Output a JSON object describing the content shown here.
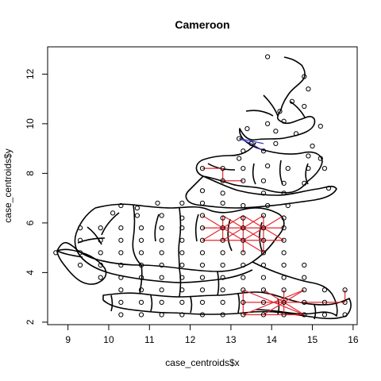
{
  "chart_data": {
    "type": "scatter",
    "title": "Cameroon",
    "xlabel": "case_centroids$x",
    "ylabel": "case_centroids$y",
    "xlim": [
      8.5,
      16.1
    ],
    "ylim": [
      1.9,
      13.1
    ],
    "xticks": [
      9,
      10,
      11,
      12,
      13,
      14,
      15,
      16
    ],
    "yticks": [
      2,
      4,
      6,
      8,
      10,
      12
    ],
    "grid": false,
    "legend": "none",
    "colors": {
      "red_edges": "#e8262e",
      "blue_edges": "#3a3ad0",
      "points": "#000000",
      "boundaries": "#000000"
    },
    "points": [
      [
        13.9,
        12.7
      ],
      [
        14.8,
        11.9
      ],
      [
        14.9,
        11.4
      ],
      [
        14.5,
        10.9
      ],
      [
        14.8,
        10.7
      ],
      [
        14.2,
        10.5
      ],
      [
        14.3,
        10.1
      ],
      [
        13.9,
        10.0
      ],
      [
        15.2,
        9.9
      ],
      [
        13.4,
        9.8
      ],
      [
        14.1,
        9.7
      ],
      [
        14.6,
        9.6
      ],
      [
        13.2,
        9.4
      ],
      [
        13.5,
        9.2
      ],
      [
        14.1,
        9.2
      ],
      [
        15.0,
        9.1
      ],
      [
        13.3,
        8.9
      ],
      [
        13.8,
        8.9
      ],
      [
        14.9,
        8.7
      ],
      [
        15.2,
        8.6
      ],
      [
        13.2,
        8.6
      ],
      [
        12.3,
        8.2
      ],
      [
        12.8,
        8.2
      ],
      [
        13.3,
        8.2
      ],
      [
        13.9,
        8.3
      ],
      [
        14.4,
        8.2
      ],
      [
        14.9,
        8.2
      ],
      [
        15.3,
        8.2
      ],
      [
        12.8,
        7.7
      ],
      [
        13.3,
        7.7
      ],
      [
        13.8,
        7.7
      ],
      [
        14.3,
        7.6
      ],
      [
        14.8,
        7.6
      ],
      [
        15.4,
        7.4
      ],
      [
        12.3,
        7.3
      ],
      [
        12.8,
        7.2
      ],
      [
        13.8,
        7.2
      ],
      [
        14.3,
        7.2
      ],
      [
        11.2,
        6.8
      ],
      [
        11.8,
        6.8
      ],
      [
        12.3,
        6.8
      ],
      [
        12.8,
        6.8
      ],
      [
        13.3,
        6.7
      ],
      [
        13.9,
        6.7
      ],
      [
        14.4,
        6.7
      ],
      [
        10.3,
        6.7
      ],
      [
        10.7,
        6.6
      ],
      [
        10.1,
        6.4
      ],
      [
        10.7,
        6.3
      ],
      [
        11.3,
        6.3
      ],
      [
        11.8,
        6.2
      ],
      [
        12.3,
        6.3
      ],
      [
        12.8,
        6.2
      ],
      [
        13.3,
        6.2
      ],
      [
        13.8,
        6.3
      ],
      [
        14.3,
        6.2
      ],
      [
        9.3,
        5.8
      ],
      [
        9.8,
        5.8
      ],
      [
        10.3,
        5.8
      ],
      [
        10.8,
        5.8
      ],
      [
        11.3,
        5.8
      ],
      [
        11.8,
        5.8
      ],
      [
        12.3,
        5.8
      ],
      [
        12.8,
        5.8
      ],
      [
        13.3,
        5.8
      ],
      [
        13.8,
        5.8
      ],
      [
        14.3,
        5.8
      ],
      [
        9.3,
        5.3
      ],
      [
        9.8,
        5.3
      ],
      [
        10.3,
        5.3
      ],
      [
        10.8,
        5.3
      ],
      [
        11.3,
        5.3
      ],
      [
        11.8,
        5.3
      ],
      [
        12.3,
        5.3
      ],
      [
        12.8,
        5.3
      ],
      [
        13.3,
        5.3
      ],
      [
        13.8,
        5.3
      ],
      [
        14.3,
        5.3
      ],
      [
        8.7,
        4.8
      ],
      [
        9.3,
        4.8
      ],
      [
        9.8,
        4.8
      ],
      [
        10.3,
        4.8
      ],
      [
        10.8,
        4.8
      ],
      [
        11.3,
        4.8
      ],
      [
        11.8,
        4.8
      ],
      [
        12.3,
        4.8
      ],
      [
        12.8,
        4.8
      ],
      [
        13.3,
        4.8
      ],
      [
        13.8,
        4.8
      ],
      [
        14.3,
        4.8
      ],
      [
        9.3,
        4.3
      ],
      [
        9.8,
        4.3
      ],
      [
        10.3,
        4.3
      ],
      [
        10.8,
        4.3
      ],
      [
        11.3,
        4.3
      ],
      [
        11.8,
        4.3
      ],
      [
        12.3,
        4.3
      ],
      [
        12.8,
        4.3
      ],
      [
        13.3,
        4.3
      ],
      [
        13.8,
        4.3
      ],
      [
        14.3,
        4.3
      ],
      [
        14.8,
        4.3
      ],
      [
        9.8,
        3.8
      ],
      [
        10.3,
        3.8
      ],
      [
        10.8,
        3.8
      ],
      [
        11.3,
        3.8
      ],
      [
        11.8,
        3.8
      ],
      [
        12.3,
        3.8
      ],
      [
        12.8,
        3.8
      ],
      [
        13.3,
        3.8
      ],
      [
        13.8,
        3.8
      ],
      [
        14.3,
        3.8
      ],
      [
        14.8,
        3.8
      ],
      [
        10.3,
        3.3
      ],
      [
        10.8,
        3.3
      ],
      [
        11.3,
        3.3
      ],
      [
        11.8,
        3.3
      ],
      [
        12.3,
        3.3
      ],
      [
        12.8,
        3.3
      ],
      [
        13.3,
        3.3
      ],
      [
        13.8,
        3.3
      ],
      [
        14.3,
        3.3
      ],
      [
        14.8,
        3.3
      ],
      [
        15.3,
        3.3
      ],
      [
        15.8,
        3.3
      ],
      [
        10.3,
        2.8
      ],
      [
        10.8,
        2.8
      ],
      [
        11.3,
        2.8
      ],
      [
        11.8,
        2.8
      ],
      [
        12.3,
        2.8
      ],
      [
        12.8,
        2.8
      ],
      [
        13.3,
        2.8
      ],
      [
        13.8,
        2.8
      ],
      [
        14.3,
        2.8
      ],
      [
        14.8,
        2.8
      ],
      [
        15.3,
        2.8
      ],
      [
        15.8,
        2.8
      ],
      [
        10.3,
        2.3
      ],
      [
        10.8,
        2.3
      ],
      [
        11.3,
        2.3
      ],
      [
        11.8,
        2.3
      ],
      [
        12.3,
        2.3
      ],
      [
        12.8,
        2.3
      ],
      [
        13.3,
        2.3
      ],
      [
        13.8,
        2.3
      ],
      [
        14.3,
        2.3
      ],
      [
        14.8,
        2.3
      ],
      [
        15.3,
        2.3
      ],
      [
        15.8,
        2.3
      ]
    ],
    "red_edges": [
      [
        [
          12.3,
          8.2
        ],
        [
          12.8,
          8.2
        ]
      ],
      [
        [
          12.8,
          8.2
        ],
        [
          12.8,
          7.7
        ]
      ],
      [
        [
          12.8,
          7.7
        ],
        [
          13.3,
          7.7
        ]
      ],
      [
        [
          12.3,
          6.3
        ],
        [
          13.3,
          5.3
        ]
      ],
      [
        [
          13.3,
          6.3
        ],
        [
          12.3,
          5.3
        ]
      ],
      [
        [
          12.3,
          5.8
        ],
        [
          14.3,
          5.8
        ]
      ],
      [
        [
          12.8,
          6.3
        ],
        [
          13.8,
          5.3
        ]
      ],
      [
        [
          13.8,
          6.3
        ],
        [
          12.8,
          5.3
        ]
      ],
      [
        [
          13.3,
          6.3
        ],
        [
          14.3,
          5.3
        ]
      ],
      [
        [
          14.3,
          6.3
        ],
        [
          13.3,
          5.3
        ]
      ],
      [
        [
          12.8,
          6.3
        ],
        [
          12.8,
          5.3
        ]
      ],
      [
        [
          13.3,
          6.3
        ],
        [
          13.3,
          4.8
        ]
      ],
      [
        [
          13.8,
          6.3
        ],
        [
          13.8,
          4.8
        ]
      ],
      [
        [
          12.3,
          5.3
        ],
        [
          14.3,
          5.3
        ]
      ],
      [
        [
          13.3,
          5.3
        ],
        [
          13.8,
          4.8
        ]
      ],
      [
        [
          13.3,
          3.3
        ],
        [
          14.8,
          2.3
        ]
      ],
      [
        [
          13.3,
          2.3
        ],
        [
          14.8,
          3.3
        ]
      ],
      [
        [
          13.3,
          2.8
        ],
        [
          15.8,
          2.8
        ]
      ],
      [
        [
          13.8,
          3.3
        ],
        [
          14.8,
          2.3
        ]
      ],
      [
        [
          13.8,
          2.3
        ],
        [
          14.8,
          3.3
        ]
      ],
      [
        [
          14.3,
          3.3
        ],
        [
          14.3,
          2.3
        ]
      ],
      [
        [
          13.3,
          3.3
        ],
        [
          13.3,
          2.3
        ]
      ],
      [
        [
          13.3,
          2.3
        ],
        [
          14.8,
          2.3
        ]
      ],
      [
        [
          15.8,
          3.3
        ],
        [
          15.8,
          2.8
        ]
      ]
    ],
    "blue_edges": [
      [
        [
          13.2,
          9.4
        ],
        [
          13.5,
          9.2
        ]
      ],
      [
        [
          13.5,
          9.2
        ],
        [
          13.8,
          8.9
        ]
      ],
      [
        [
          13.2,
          9.4
        ],
        [
          13.8,
          9.2
        ]
      ]
    ]
  }
}
